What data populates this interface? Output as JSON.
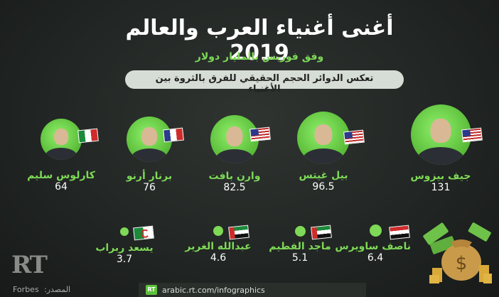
{
  "title": "أغنى أغنياء العرب والعالم 2019",
  "subtitle": "وفق فوربس بالمليار دولار",
  "note": "تعكس الدوائر الحجم الحقيقي للفرق بالثروة بين الأغنياء",
  "world": [
    {
      "name": "جيف بيزوس",
      "value": "131",
      "flag": "us"
    },
    {
      "name": "بيل غيتس",
      "value": "96.5",
      "flag": "us"
    },
    {
      "name": "وارن بافت",
      "value": "82.5",
      "flag": "us"
    },
    {
      "name": "برنار أرنو",
      "value": "76",
      "flag": "fr"
    },
    {
      "name": "كارلوس سليم",
      "value": "64",
      "flag": "mx"
    }
  ],
  "arab": [
    {
      "name": "ناصف ساويرس",
      "value": "6.4",
      "flag": "eg"
    },
    {
      "name": "ماجد الفطيم",
      "value": "5.1",
      "flag": "ae"
    },
    {
      "name": "عبدالله الغرير",
      "value": "4.6",
      "flag": "ae"
    },
    {
      "name": "يسعد ربراب",
      "value": "3.7",
      "flag": "dz"
    }
  ],
  "footer": {
    "url": "arabic.rt.com/infographics",
    "rt_badge": "RT",
    "logo": "RT",
    "source_label": "المصدر:",
    "source_value": "Forbes"
  },
  "colors": {
    "accent": "#7ed957",
    "background": "#252927"
  }
}
